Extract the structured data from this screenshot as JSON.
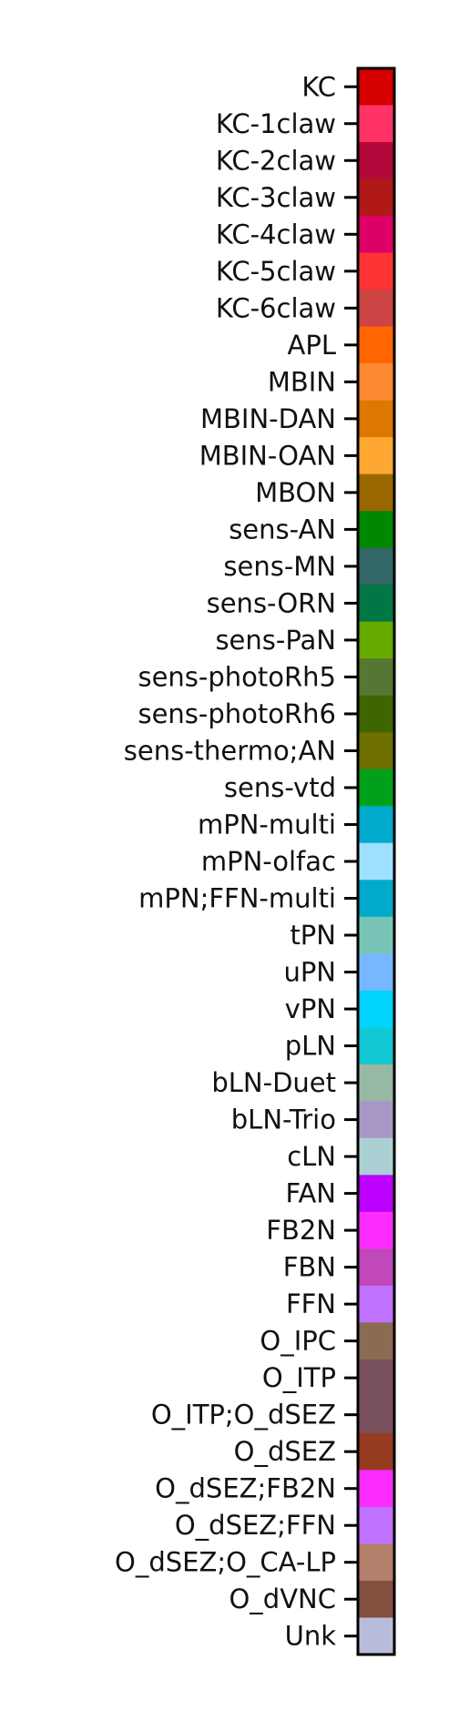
{
  "chart_data": {
    "type": "heatmap",
    "title": "",
    "categories": [
      {
        "label": "KC",
        "color": "#d50000"
      },
      {
        "label": "KC-1claw",
        "color": "#ff3366"
      },
      {
        "label": "KC-2claw",
        "color": "#b2083c"
      },
      {
        "label": "KC-3claw",
        "color": "#b01818"
      },
      {
        "label": "KC-4claw",
        "color": "#dd0066"
      },
      {
        "label": "KC-5claw",
        "color": "#ff3333"
      },
      {
        "label": "KC-6claw",
        "color": "#cc4444"
      },
      {
        "label": "APL",
        "color": "#ff6600"
      },
      {
        "label": "MBIN",
        "color": "#ff8833"
      },
      {
        "label": "MBIN-DAN",
        "color": "#dd7700"
      },
      {
        "label": "MBIN-OAN",
        "color": "#ffa733"
      },
      {
        "label": "MBON",
        "color": "#996600"
      },
      {
        "label": "sens-AN",
        "color": "#008800"
      },
      {
        "label": "sens-MN",
        "color": "#336666"
      },
      {
        "label": "sens-ORN",
        "color": "#007744"
      },
      {
        "label": "sens-PaN",
        "color": "#66aa00"
      },
      {
        "label": "sens-photoRh5",
        "color": "#557733"
      },
      {
        "label": "sens-photoRh6",
        "color": "#3e6600"
      },
      {
        "label": "sens-thermo;AN",
        "color": "#6e7000"
      },
      {
        "label": "sens-vtd",
        "color": "#00a01a"
      },
      {
        "label": "mPN-multi",
        "color": "#00aacc"
      },
      {
        "label": "mPN-olfac",
        "color": "#a0e0ff"
      },
      {
        "label": "mPN;FFN-multi",
        "color": "#00aacc"
      },
      {
        "label": "tPN",
        "color": "#77c4b6"
      },
      {
        "label": "uPN",
        "color": "#77b7ff"
      },
      {
        "label": "vPN",
        "color": "#00d4ff"
      },
      {
        "label": "pLN",
        "color": "#11c8d4"
      },
      {
        "label": "bLN-Duet",
        "color": "#97b8a3"
      },
      {
        "label": "bLN-Trio",
        "color": "#a897c6"
      },
      {
        "label": "cLN",
        "color": "#aad0d4"
      },
      {
        "label": "FAN",
        "color": "#bb00ff"
      },
      {
        "label": "FB2N",
        "color": "#ff2cff"
      },
      {
        "label": "FBN",
        "color": "#c148bb"
      },
      {
        "label": "FFN",
        "color": "#bf72ff"
      },
      {
        "label": "O_IPC",
        "color": "#8c6b53"
      },
      {
        "label": "O_ITP",
        "color": "#78505e"
      },
      {
        "label": "O_ITP;O_dSEZ",
        "color": "#78505e"
      },
      {
        "label": "O_dSEZ",
        "color": "#963b1f"
      },
      {
        "label": "O_dSEZ;FB2N",
        "color": "#ff2cff"
      },
      {
        "label": "O_dSEZ;FFN",
        "color": "#bf72ff"
      },
      {
        "label": "O_dSEZ;O_CA-LP",
        "color": "#b27f6b"
      },
      {
        "label": "O_dVNC",
        "color": "#82503e"
      },
      {
        "label": "Unk",
        "color": "#b8bcdb"
      }
    ]
  }
}
